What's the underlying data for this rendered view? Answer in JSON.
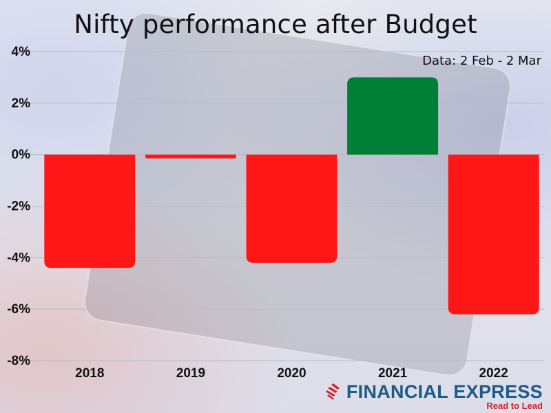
{
  "chart_data": {
    "type": "bar",
    "title": "Nifty performance after Budget",
    "subtitle": "Data: 2 Feb - 2 Mar",
    "xlabel": "",
    "ylabel": "",
    "categories": [
      "2018",
      "2019",
      "2020",
      "2021",
      "2022"
    ],
    "values": [
      -4.4,
      -0.15,
      -4.2,
      3.0,
      -6.2
    ],
    "unit": "%",
    "ylim": [
      -8,
      4
    ],
    "yticks": [
      4,
      2,
      0,
      -2,
      -4,
      -6,
      -8
    ],
    "ytick_labels": [
      "4%",
      "2%",
      "0%",
      "-2%",
      "-4%",
      "-6%",
      "-8%"
    ],
    "grid": true,
    "legend": "none",
    "colors": {
      "positive": "#007f36",
      "negative": "#ff1717"
    }
  },
  "branding": {
    "logo_text": "FINANCIAL EXPRESS",
    "tagline": "Read to Lead",
    "logo_icon": "fe-stripes-icon",
    "brand_color": "#1d5a86",
    "accent_color": "#d2242c"
  }
}
